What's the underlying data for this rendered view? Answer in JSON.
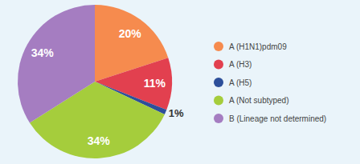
{
  "chart_data": {
    "type": "pie",
    "categories": [
      "A (H1N1)pdm09",
      "A (H3)",
      "A (H5)",
      "A (Not subtyped)",
      "B (Lineage not determined)"
    ],
    "values": [
      20,
      11,
      1,
      34,
      34
    ],
    "value_labels": [
      "20%",
      "11%",
      "1%",
      "34%",
      "34%"
    ],
    "colors": [
      "#f68b4e",
      "#e2404f",
      "#2d4f9a",
      "#a5cd3c",
      "#a57dc1"
    ],
    "data_labels": true,
    "legend": "right"
  }
}
